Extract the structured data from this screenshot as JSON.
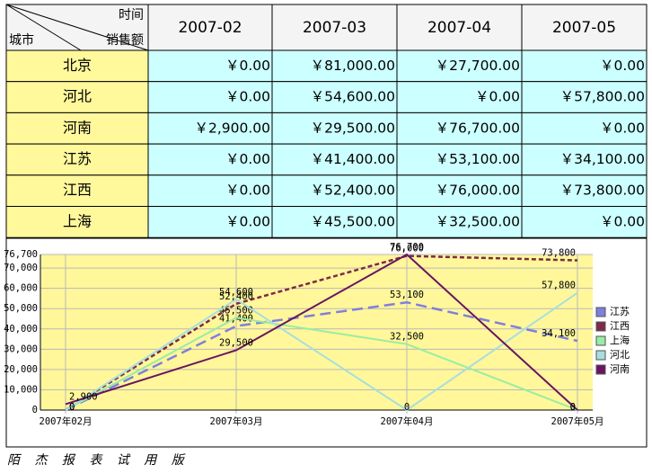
{
  "table": {
    "corner": {
      "top": "时间",
      "left": "城市",
      "right": "销售额"
    },
    "columns": [
      "2007-02",
      "2007-03",
      "2007-04",
      "2007-05"
    ],
    "rows": [
      {
        "city": "北京",
        "values": [
          "￥0.00",
          "￥81,000.00",
          "￥27,700.00",
          "￥0.00"
        ]
      },
      {
        "city": "河北",
        "values": [
          "￥0.00",
          "￥54,600.00",
          "￥0.00",
          "￥57,800.00"
        ]
      },
      {
        "city": "河南",
        "values": [
          "￥2,900.00",
          "￥29,500.00",
          "￥76,700.00",
          "￥0.00"
        ]
      },
      {
        "city": "江苏",
        "values": [
          "￥0.00",
          "￥41,400.00",
          "￥53,100.00",
          "￥34,100.00"
        ]
      },
      {
        "city": "江西",
        "values": [
          "￥0.00",
          "￥52,400.00",
          "￥76,000.00",
          "￥73,800.00"
        ]
      },
      {
        "city": "上海",
        "values": [
          "￥0.00",
          "￥45,500.00",
          "￥32,500.00",
          "￥0.00"
        ]
      }
    ]
  },
  "chart_data": {
    "type": "line",
    "categories": [
      "2007年02月",
      "2007年03月",
      "2007年04月",
      "2007年05月"
    ],
    "ylim": [
      0,
      76700
    ],
    "yticks": [
      0,
      {
        "value": 10000,
        "label": "10,000"
      },
      {
        "value": 20000,
        "label": "20,000"
      },
      {
        "value": 30000,
        "label": "30,000"
      },
      {
        "value": 40000,
        "label": "40,000"
      },
      {
        "value": 50000,
        "label": "50,000"
      },
      {
        "value": 60000,
        "label": "60,000"
      },
      {
        "value": 70000,
        "label": "70,000"
      },
      {
        "value": 76700,
        "label": "76,700"
      }
    ],
    "grid": true,
    "series": [
      {
        "name": "江苏",
        "color": "#7f7fdc",
        "style": "dashed",
        "values": [
          0,
          41400,
          53100,
          34100
        ],
        "value_labels": [
          "0",
          "41,400",
          "53,100",
          "34,100"
        ]
      },
      {
        "name": "江西",
        "color": "#7d2a4a",
        "style": "dashed",
        "values": [
          0,
          52400,
          76000,
          73800
        ],
        "value_labels": [
          "0",
          "52,400",
          "76,000",
          "73,800"
        ]
      },
      {
        "name": "上海",
        "color": "#99eca4",
        "style": "solid",
        "values": [
          0,
          45500,
          32500,
          0
        ],
        "value_labels": [
          "0",
          "45,500",
          "32,500",
          "0"
        ]
      },
      {
        "name": "河北",
        "color": "#a8dede",
        "style": "solid",
        "values": [
          0,
          54600,
          0,
          57800
        ],
        "value_labels": [
          "0",
          "54,600",
          "0",
          "57,800"
        ]
      },
      {
        "name": "河南",
        "color": "#6a1462",
        "style": "solid",
        "values": [
          2900,
          29500,
          76700,
          0
        ],
        "value_labels": [
          "2,900",
          "29,500",
          "76,700",
          "0"
        ]
      }
    ]
  },
  "footer": "陌 杰 报 表 试 用 版"
}
